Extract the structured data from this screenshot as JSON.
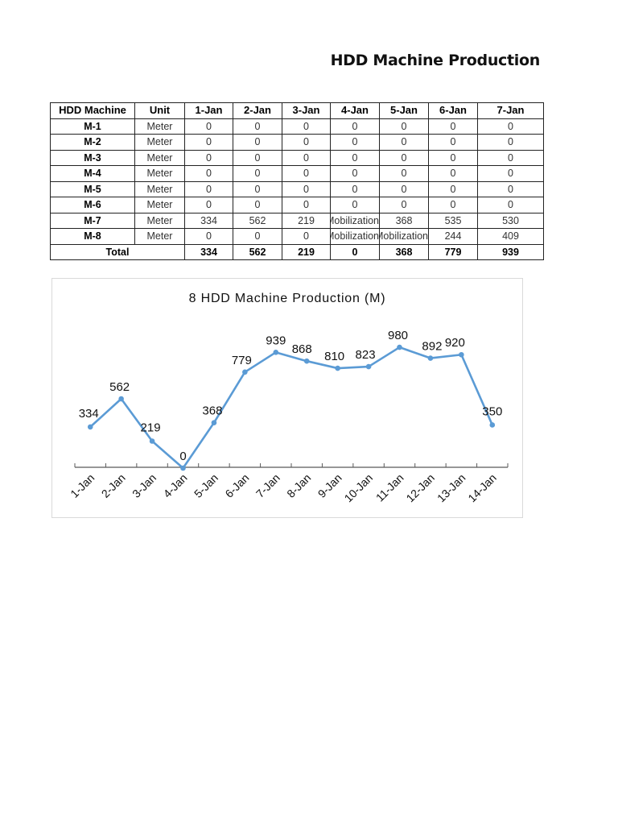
{
  "document": {
    "title": "HDD Machine Production"
  },
  "table": {
    "headers": [
      "HDD Machine",
      "Unit",
      "1-Jan",
      "2-Jan",
      "3-Jan",
      "4-Jan",
      "5-Jan",
      "6-Jan",
      "7-Jan"
    ],
    "rows": [
      {
        "machine": "M-1",
        "unit": "Meter",
        "values": [
          "0",
          "0",
          "0",
          "0",
          "0",
          "0",
          "0"
        ]
      },
      {
        "machine": "M-2",
        "unit": "Meter",
        "values": [
          "0",
          "0",
          "0",
          "0",
          "0",
          "0",
          "0"
        ]
      },
      {
        "machine": "M-3",
        "unit": "Meter",
        "values": [
          "0",
          "0",
          "0",
          "0",
          "0",
          "0",
          "0"
        ]
      },
      {
        "machine": "M-4",
        "unit": "Meter",
        "values": [
          "0",
          "0",
          "0",
          "0",
          "0",
          "0",
          "0"
        ]
      },
      {
        "machine": "M-5",
        "unit": "Meter",
        "values": [
          "0",
          "0",
          "0",
          "0",
          "0",
          "0",
          "0"
        ]
      },
      {
        "machine": "M-6",
        "unit": "Meter",
        "values": [
          "0",
          "0",
          "0",
          "0",
          "0",
          "0",
          "0"
        ]
      },
      {
        "machine": "M-7",
        "unit": "Meter",
        "values": [
          "334",
          "562",
          "219",
          "Mobilization",
          "368",
          "535",
          "530"
        ]
      },
      {
        "machine": "M-8",
        "unit": "Meter",
        "values": [
          "0",
          "0",
          "0",
          "Mobilization",
          "Mobilization",
          "244",
          "409"
        ]
      }
    ],
    "total": {
      "label": "Total",
      "values": [
        "334",
        "562",
        "219",
        "0",
        "368",
        "779",
        "939"
      ]
    }
  },
  "colors": {
    "line": "#5b9bd5",
    "axis": "#595959",
    "chart_border": "#d9d9d9"
  },
  "chart_data": {
    "type": "line",
    "title": "8 HDD Machine Production (M)",
    "xlabel": "",
    "ylabel": "",
    "categories": [
      "1-Jan",
      "2-Jan",
      "3-Jan",
      "4-Jan",
      "5-Jan",
      "6-Jan",
      "7-Jan",
      "8-Jan",
      "9-Jan",
      "10-Jan",
      "11-Jan",
      "12-Jan",
      "13-Jan",
      "14-Jan"
    ],
    "series": [
      {
        "name": "Production (M)",
        "values": [
          334,
          562,
          219,
          0,
          368,
          779,
          939,
          868,
          810,
          823,
          980,
          892,
          920,
          350
        ]
      }
    ],
    "data_labels": true,
    "markers": true,
    "grid": false,
    "legend": "none",
    "ylim": [
      0,
      1000
    ],
    "x_tick_rotation": -45
  }
}
